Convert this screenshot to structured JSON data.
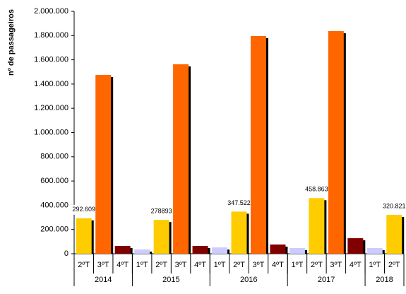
{
  "chart_data": {
    "type": "bar",
    "y_label": "nº de passageiros",
    "ylim": [
      0,
      2000000
    ],
    "yticks": [
      {
        "value": 0,
        "label": "0"
      },
      {
        "value": 200000,
        "label": "200.000"
      },
      {
        "value": 400000,
        "label": "400.000"
      },
      {
        "value": 600000,
        "label": "600.000"
      },
      {
        "value": 800000,
        "label": "800.000"
      },
      {
        "value": 1000000,
        "label": "1.000.000"
      },
      {
        "value": 1200000,
        "label": "1.200.000"
      },
      {
        "value": 1400000,
        "label": "1.400.000"
      },
      {
        "value": 1600000,
        "label": "1.600.000"
      },
      {
        "value": 1800000,
        "label": "1.800.000"
      },
      {
        "value": 2000000,
        "label": "2.000.000"
      }
    ],
    "groups": [
      {
        "name": "2014",
        "categories": [
          "2ºT",
          "3ºT",
          "4ºT"
        ],
        "values": [
          292609,
          1475000,
          64000
        ],
        "value_labels": [
          "292.609",
          null,
          null
        ],
        "colors": [
          "#ffcc00",
          "#ff6600",
          "#800000"
        ]
      },
      {
        "name": "2015",
        "categories": [
          "1ºT",
          "2ºT",
          "3ºT",
          "4ºT"
        ],
        "values": [
          35000,
          278893,
          1563000,
          64000
        ],
        "value_labels": [
          null,
          "278893",
          null,
          null
        ],
        "colors": [
          "#ccccff",
          "#ffcc00",
          "#ff6600",
          "#800000"
        ]
      },
      {
        "name": "2016",
        "categories": [
          "1ºT",
          "2ºT",
          "3ºT",
          "4ºT"
        ],
        "values": [
          52000,
          347522,
          1796000,
          76000
        ],
        "value_labels": [
          null,
          "347.522",
          null,
          null
        ],
        "colors": [
          "#ccccff",
          "#ffcc00",
          "#ff6600",
          "#800000"
        ]
      },
      {
        "name": "2017",
        "categories": [
          "1ºT",
          "2ºT",
          "3ºT",
          "4ºT"
        ],
        "values": [
          47000,
          458863,
          1837000,
          128000
        ],
        "value_labels": [
          null,
          "458.863",
          null,
          null
        ],
        "colors": [
          "#ccccff",
          "#ffcc00",
          "#ff6600",
          "#800000"
        ]
      },
      {
        "name": "2018",
        "categories": [
          "1ºT",
          "2ºT"
        ],
        "values": [
          47000,
          320821
        ],
        "value_labels": [
          null,
          "320.821"
        ],
        "colors": [
          "#ccccff",
          "#ffcc00"
        ]
      }
    ]
  }
}
